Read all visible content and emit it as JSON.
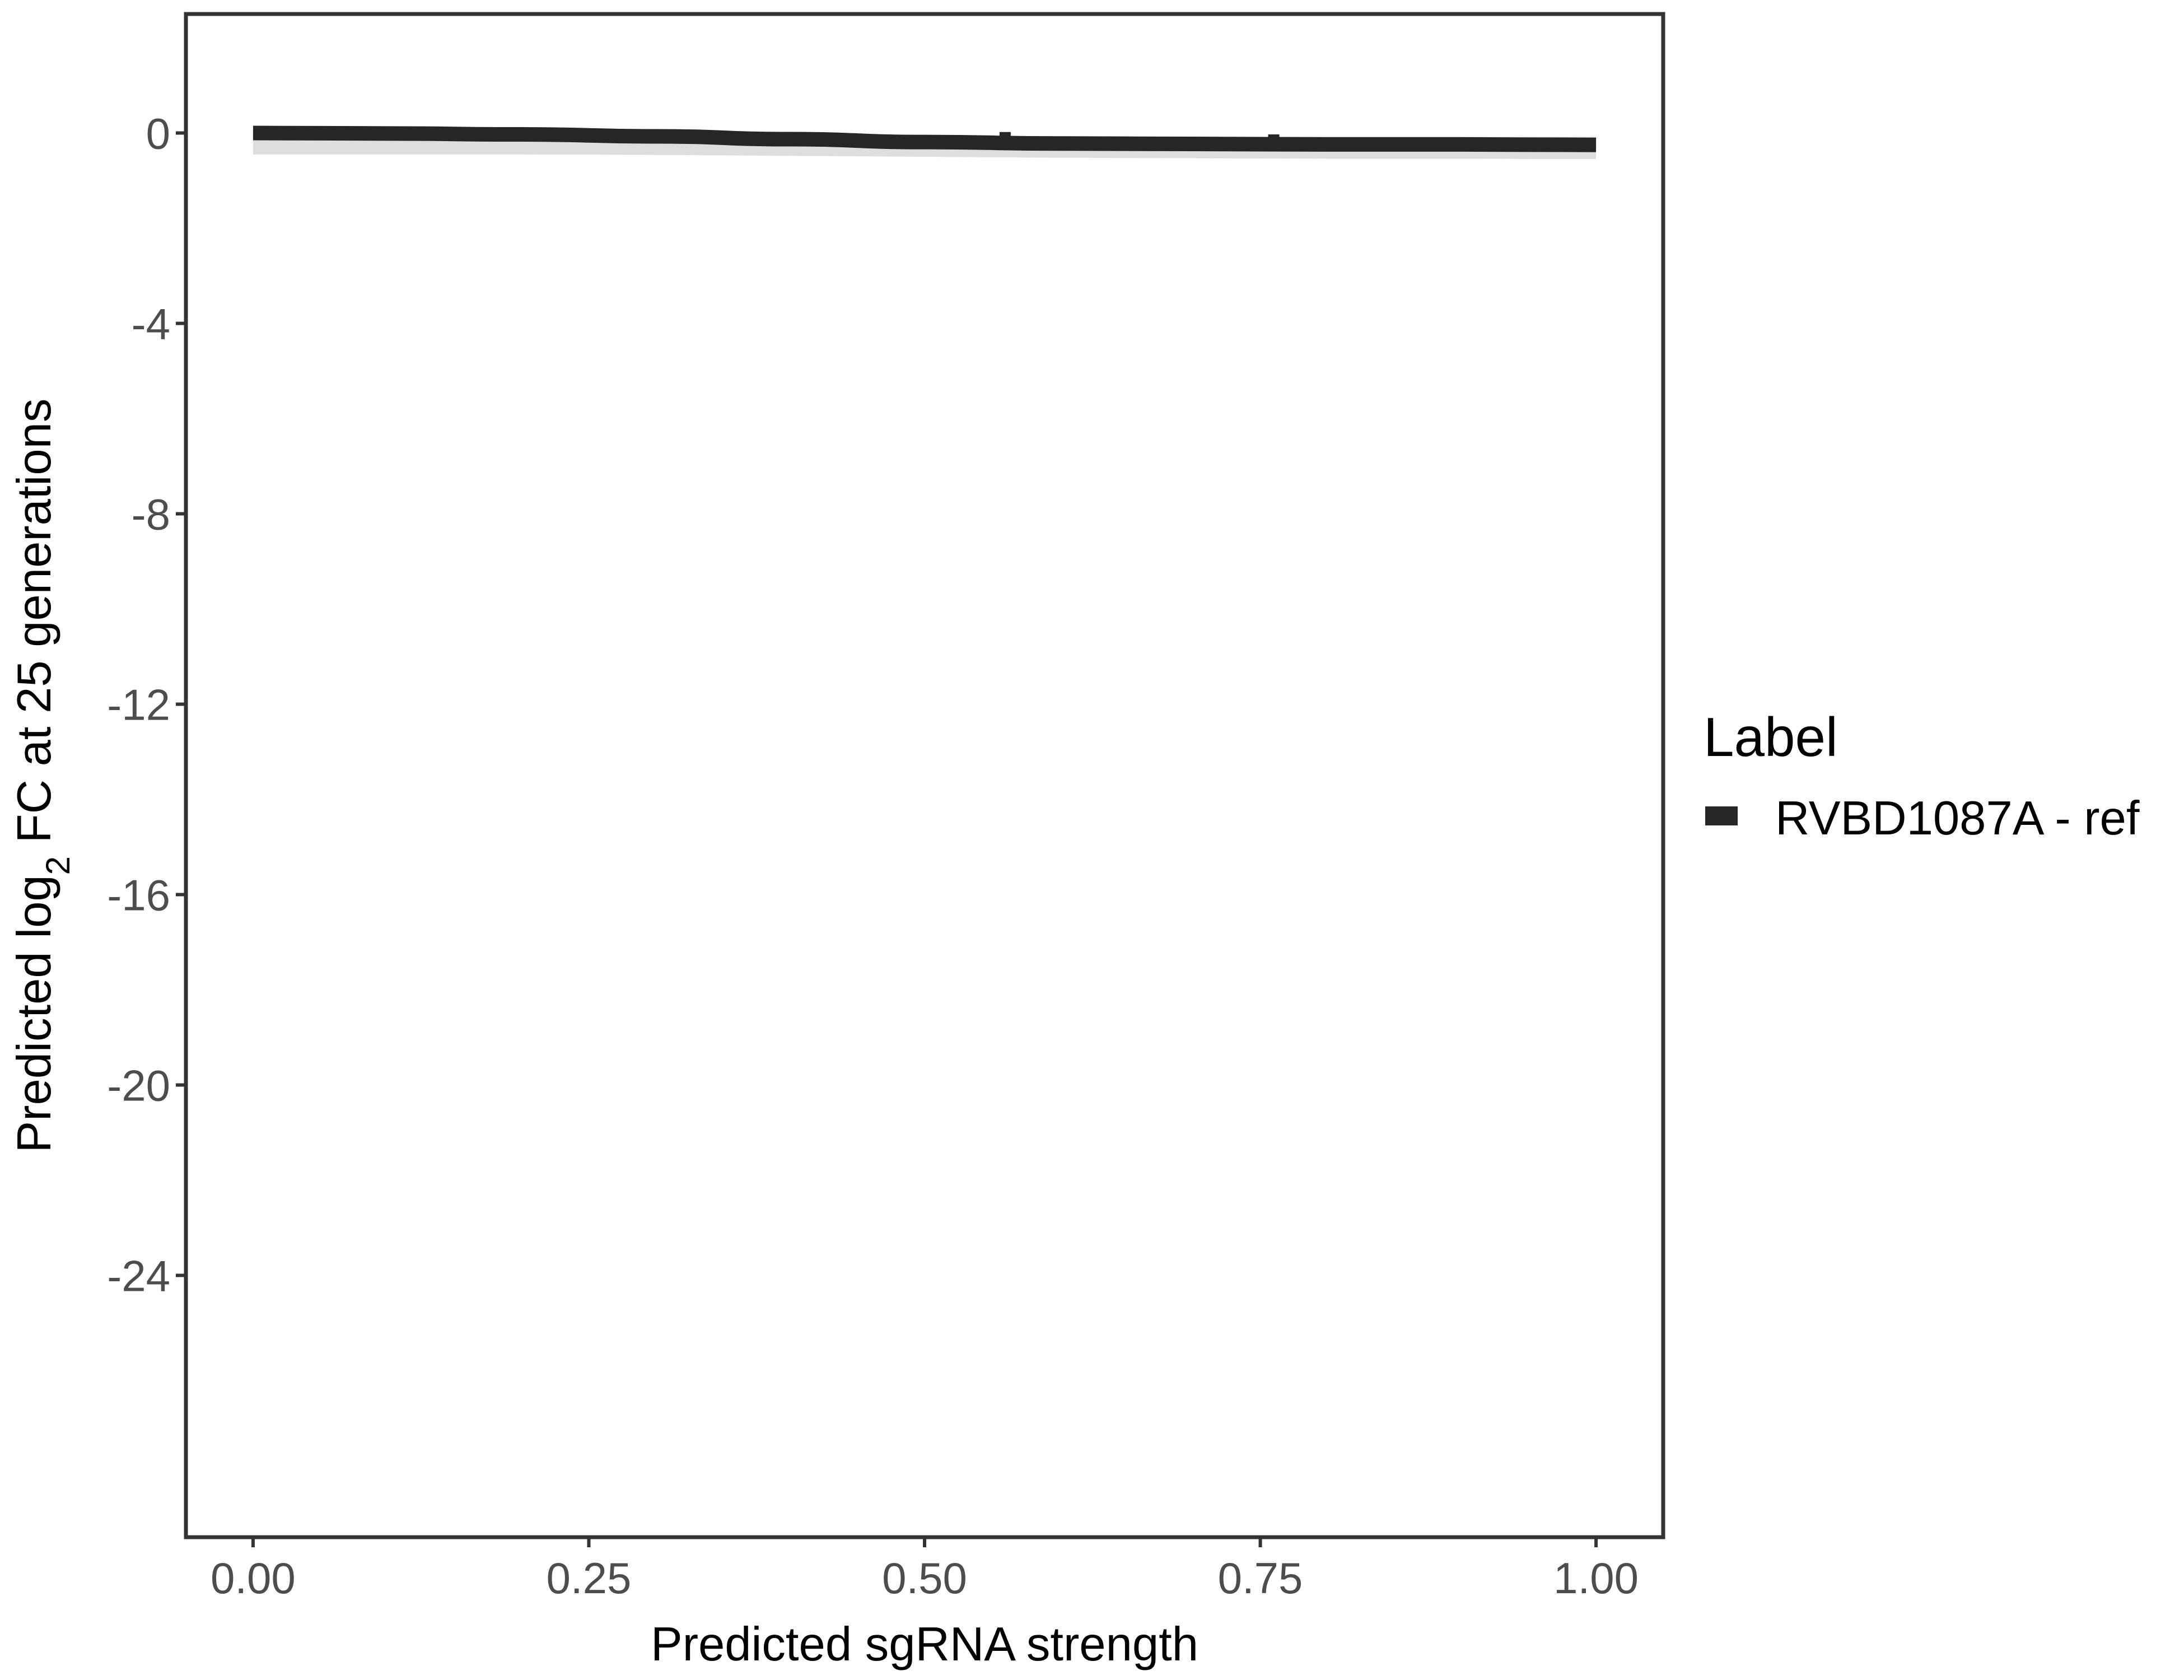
{
  "chart_data": {
    "type": "line",
    "xlabel": "Predicted sgRNA strength",
    "ylabel_parts": [
      "Predicted  log",
      "2",
      " FC at 25 generations"
    ],
    "xlim": [
      -0.05,
      1.05
    ],
    "ylim": [
      -29.5,
      2.5
    ],
    "x_ticks": [
      0,
      0.25,
      0.5,
      0.75,
      1
    ],
    "x_tick_labels": [
      "0.00",
      "0.25",
      "0.50",
      "0.75",
      "1.00"
    ],
    "y_ticks": [
      0,
      -4,
      -8,
      -12,
      -16,
      -20,
      -24
    ],
    "y_tick_labels": [
      "0",
      "-4",
      "-8",
      "-12",
      "-16",
      "-20",
      "-24"
    ],
    "grid": false,
    "legend": {
      "title": "Label",
      "position": "right"
    },
    "series": [
      {
        "name": "RVBD1087A - ref",
        "color": "#262626",
        "band_color": "#bdbdbd",
        "x": [
          0,
          0.1,
          0.2,
          0.3,
          0.4,
          0.5,
          0.6,
          0.7,
          0.8,
          0.9,
          1.0
        ],
        "y": [
          0,
          -0.01,
          -0.03,
          -0.07,
          -0.13,
          -0.19,
          -0.22,
          -0.23,
          -0.24,
          -0.24,
          -0.25
        ],
        "ci_low": [
          -0.45,
          -0.45,
          -0.45,
          -0.46,
          -0.48,
          -0.5,
          -0.52,
          -0.53,
          -0.54,
          -0.54,
          -0.55
        ],
        "ci_high": [
          0.05,
          0.05,
          0.04,
          0.02,
          -0.02,
          -0.05,
          -0.07,
          -0.08,
          -0.08,
          -0.08,
          -0.08
        ],
        "points": [
          {
            "x": 0.56,
            "y": -0.05
          },
          {
            "x": 0.76,
            "y": -0.1
          }
        ]
      }
    ]
  }
}
